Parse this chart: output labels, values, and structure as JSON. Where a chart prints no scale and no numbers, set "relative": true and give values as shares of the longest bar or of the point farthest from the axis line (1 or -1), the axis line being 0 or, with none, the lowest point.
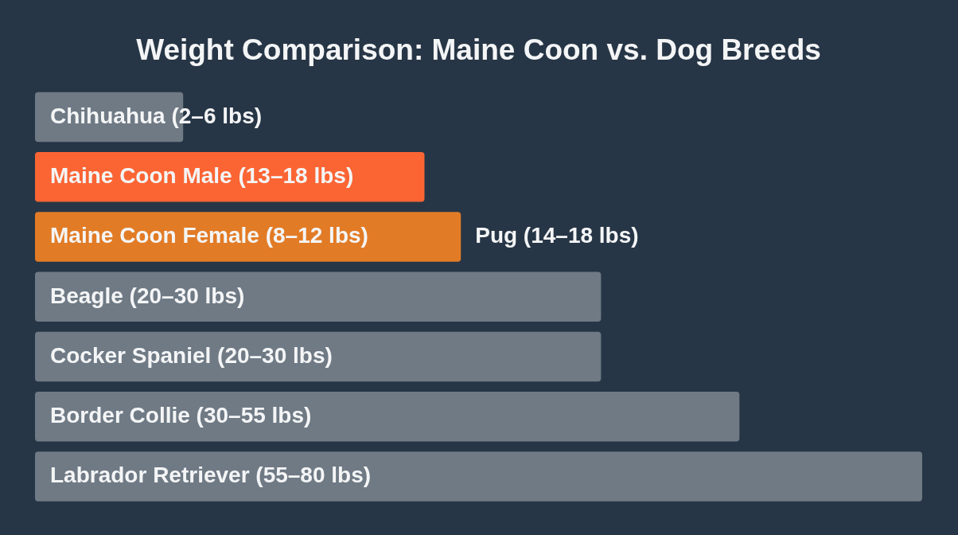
{
  "chart_data": {
    "type": "bar",
    "orientation": "horizontal",
    "relative": true,
    "title": "Weight Comparison: Maine Coon vs. Dog Breeds",
    "categories": [
      "Chihuahua (2–6 lbs)",
      "Maine Coon Male (13–18 lbs)",
      "Maine Coon Female (8–12 lbs)",
      "Beagle (20–30 lbs)",
      "Cocker Spaniel (20–30 lbs)",
      "Border Collie (30–55 lbs)",
      "Labrador Retriever (55–80 lbs)"
    ],
    "values": [
      0.167,
      0.439,
      0.48,
      0.638,
      0.638,
      0.794,
      1
    ],
    "colors": [
      "#6f7a85",
      "#fb6534",
      "#e27b26",
      "#6f7a85",
      "#6f7a85",
      "#6f7a85",
      "#6f7a85"
    ],
    "annotations": [
      {
        "text": "Pug (14–18 lbs)",
        "x": 0.48,
        "y": "Maine Coon Female (8–12 lbs)"
      }
    ]
  }
}
